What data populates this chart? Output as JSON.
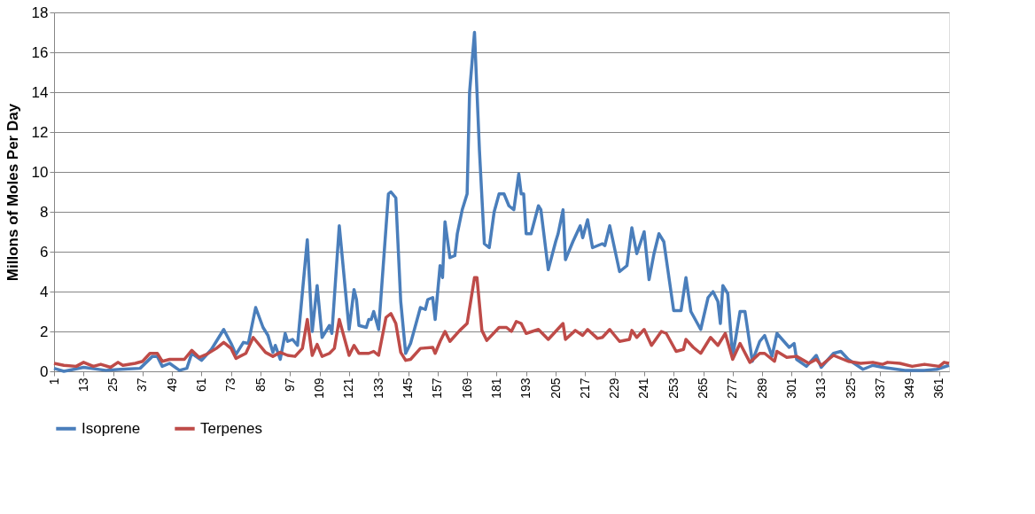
{
  "chart_data": {
    "type": "line",
    "ylabel": "Millons of Moles Per Day",
    "xlim": [
      1,
      365
    ],
    "xticks": [
      1,
      13,
      25,
      37,
      49,
      61,
      73,
      85,
      97,
      109,
      121,
      133,
      145,
      157,
      169,
      181,
      193,
      205,
      217,
      229,
      241,
      253,
      265,
      277,
      289,
      301,
      313,
      325,
      337,
      349,
      361
    ],
    "ylim": [
      0,
      18
    ],
    "yticks": [
      0,
      2,
      4,
      6,
      8,
      10,
      12,
      14,
      16,
      18
    ],
    "grid": "y",
    "legend": "bottom",
    "marker": "none",
    "line_style": "solid",
    "series": [
      {
        "name": "Isoprene",
        "color": "#4a7ebb",
        "x": [
          1,
          5,
          13,
          22,
          28,
          36,
          41,
          43,
          45,
          48,
          52,
          55,
          57,
          61,
          65,
          67,
          70,
          73,
          75,
          78,
          80,
          83,
          86,
          88,
          90,
          91,
          93,
          95,
          96,
          98,
          100,
          104,
          106,
          108,
          110,
          113,
          114,
          117,
          121,
          123,
          124,
          125,
          128,
          129,
          130,
          131,
          133,
          137,
          138,
          140,
          142,
          144,
          146,
          150,
          152,
          153,
          155,
          156,
          158,
          159,
          160,
          162,
          164,
          165,
          167,
          169,
          170,
          172,
          174,
          176,
          178,
          180,
          182,
          184,
          186,
          188,
          190,
          191,
          192,
          193,
          195,
          198,
          199,
          202,
          205,
          206,
          208,
          209,
          212,
          215,
          216,
          218,
          220,
          222,
          224,
          225,
          227,
          231,
          234,
          236,
          238,
          241,
          243,
          245,
          247,
          249,
          253,
          256,
          258,
          260,
          264,
          267,
          269,
          271,
          272,
          273,
          275,
          277,
          280,
          282,
          285,
          288,
          290,
          293,
          295,
          300,
          302,
          303,
          307,
          311,
          313,
          318,
          321,
          324,
          330,
          334,
          338,
          347,
          355,
          360,
          365
        ],
        "values": [
          0.15,
          0,
          0.2,
          0.05,
          0.1,
          0.15,
          0.75,
          0.75,
          0.25,
          0.4,
          0.05,
          0.15,
          0.9,
          0.55,
          1.1,
          1.5,
          2.1,
          1.4,
          0.85,
          1.45,
          1.4,
          3.2,
          2.2,
          1.8,
          0.95,
          1.3,
          0.6,
          1.9,
          1.5,
          1.6,
          1.3,
          6.6,
          2.0,
          4.3,
          1.7,
          2.3,
          1.9,
          7.3,
          2.1,
          4.1,
          3.6,
          2.3,
          2.2,
          2.6,
          2.6,
          3.0,
          2.1,
          8.9,
          9.0,
          8.7,
          3.5,
          0.9,
          1.4,
          3.2,
          3.1,
          3.6,
          3.7,
          2.6,
          5.3,
          4.7,
          7.5,
          5.7,
          5.8,
          6.9,
          8.1,
          8.9,
          14,
          17,
          11.1,
          6.4,
          6.2,
          8.0,
          8.9,
          8.9,
          8.3,
          8.1,
          9.9,
          8.9,
          8.9,
          6.9,
          6.9,
          8.3,
          8.1,
          5.1,
          6.5,
          6.9,
          8.1,
          5.6,
          6.5,
          7.3,
          6.7,
          7.6,
          6.2,
          6.3,
          6.4,
          6.3,
          7.3,
          5.0,
          5.3,
          7.2,
          5.9,
          7.0,
          4.6,
          5.9,
          6.9,
          6.5,
          3.05,
          3.05,
          4.7,
          3.0,
          2.1,
          3.7,
          4.0,
          3.5,
          2.4,
          4.3,
          3.9,
          0.75,
          3.0,
          3.0,
          0.5,
          1.5,
          1.8,
          0.75,
          1.9,
          1.2,
          1.4,
          0.6,
          0.25,
          0.8,
          0.2,
          0.9,
          1.0,
          0.6,
          0.1,
          0.3,
          0.2,
          0.05,
          0.05,
          0.1,
          0.3
        ]
      },
      {
        "name": "Terpenes",
        "color": "#be4b48",
        "x": [
          1,
          5,
          10,
          13,
          17,
          20,
          24,
          27,
          29,
          34,
          37,
          40,
          43,
          45,
          48,
          54,
          57,
          60,
          63,
          67,
          70,
          73,
          75,
          79,
          82,
          87,
          90,
          93,
          96,
          99,
          102,
          104,
          106,
          108,
          110,
          113,
          115,
          117,
          121,
          123,
          125,
          129,
          131,
          133,
          136,
          138,
          140,
          142,
          144,
          146,
          150,
          155,
          156,
          158,
          160,
          162,
          166,
          169,
          172,
          173,
          175,
          177,
          182,
          185,
          187,
          189,
          191,
          193,
          198,
          202,
          208,
          209,
          213,
          216,
          218,
          222,
          224,
          227,
          231,
          235,
          236,
          238,
          241,
          244,
          248,
          250,
          254,
          257,
          258,
          261,
          264,
          268,
          271,
          274,
          277,
          280,
          284,
          288,
          290,
          294,
          295,
          299,
          303,
          308,
          311,
          313,
          318,
          324,
          329,
          334,
          338,
          340,
          345,
          350,
          355,
          361,
          363,
          365
        ],
        "values": [
          0.4,
          0.3,
          0.25,
          0.45,
          0.25,
          0.35,
          0.2,
          0.45,
          0.3,
          0.4,
          0.5,
          0.9,
          0.9,
          0.5,
          0.6,
          0.6,
          1.05,
          0.7,
          0.85,
          1.15,
          1.45,
          1.15,
          0.65,
          0.9,
          1.7,
          0.95,
          0.75,
          0.95,
          0.8,
          0.75,
          1.15,
          2.6,
          0.8,
          1.35,
          0.75,
          0.9,
          1.15,
          2.6,
          0.8,
          1.3,
          0.9,
          0.9,
          1.0,
          0.8,
          2.7,
          2.9,
          2.4,
          0.95,
          0.55,
          0.6,
          1.15,
          1.2,
          0.9,
          1.5,
          2.0,
          1.5,
          2.05,
          2.4,
          4.7,
          4.7,
          2.05,
          1.55,
          2.2,
          2.2,
          2.0,
          2.5,
          2.4,
          1.9,
          2.1,
          1.6,
          2.4,
          1.6,
          2.05,
          1.8,
          2.1,
          1.65,
          1.7,
          2.1,
          1.5,
          1.6,
          2.05,
          1.7,
          2.1,
          1.3,
          2.0,
          1.9,
          1.0,
          1.1,
          1.6,
          1.2,
          0.9,
          1.7,
          1.3,
          1.9,
          0.6,
          1.4,
          0.45,
          0.9,
          0.9,
          0.5,
          1.0,
          0.7,
          0.75,
          0.4,
          0.6,
          0.3,
          0.8,
          0.5,
          0.4,
          0.45,
          0.35,
          0.45,
          0.4,
          0.25,
          0.35,
          0.25,
          0.45,
          0.4
        ]
      }
    ]
  }
}
